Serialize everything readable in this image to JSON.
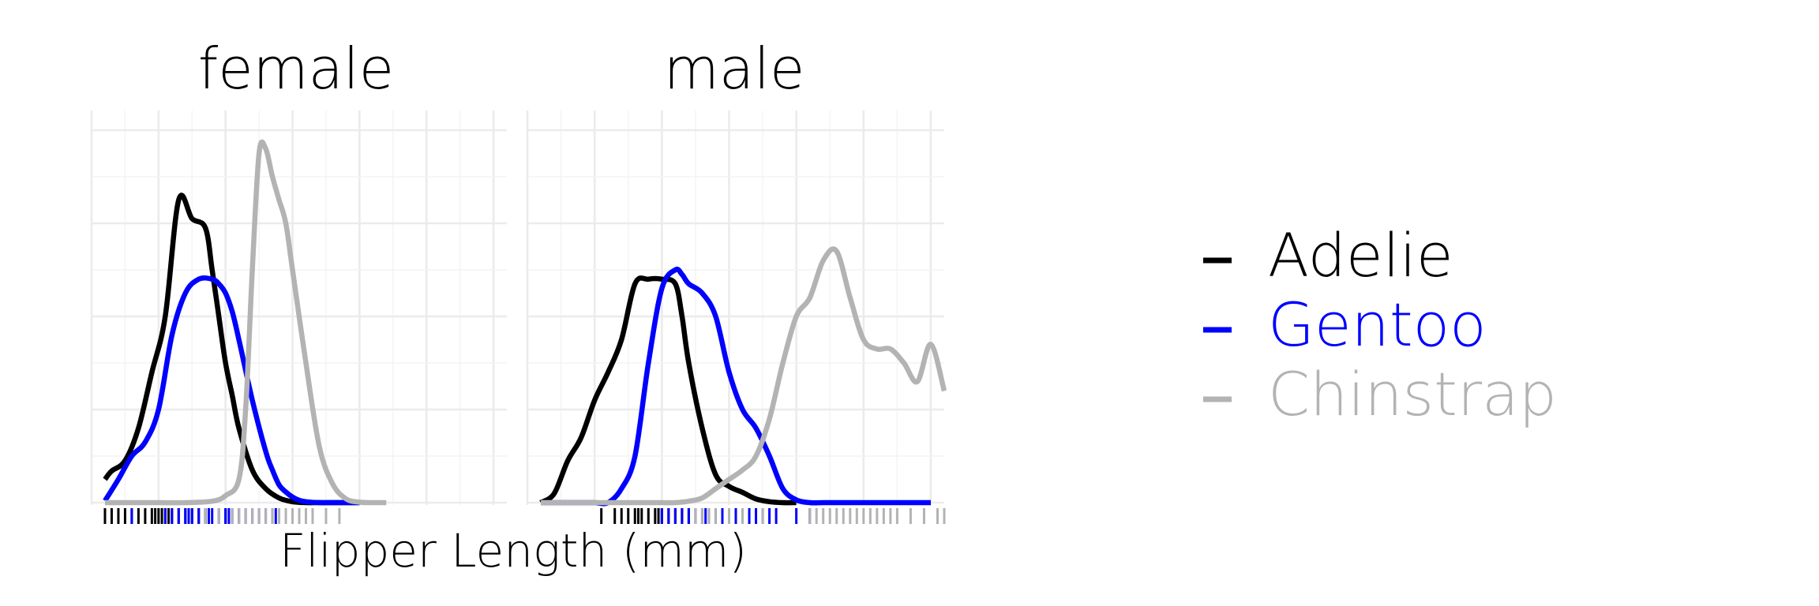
{
  "colors": {
    "Adelie": "#000000",
    "Gentoo": "#0000ff",
    "Chinstrap": "#b3b3b3"
  },
  "chart_data": {
    "type": "line",
    "subtype": "density-with-rug",
    "title": "",
    "xlabel": "Flipper Length (mm)",
    "ylabel": "",
    "xlim": [
      170,
      232
    ],
    "ylim": [
      0,
      0.08
    ],
    "grid": true,
    "legend": {
      "position": "right",
      "entries": [
        "Adelie",
        "Gentoo",
        "Chinstrap"
      ]
    },
    "facets": [
      {
        "label": "female",
        "series": [
          {
            "name": "Adelie",
            "x": [
              172,
              173,
              175,
              177,
              179,
              181,
              183,
              185,
              187,
              188,
              189,
              190,
              191,
              192,
              194,
              196,
              198,
              200,
              202,
              204,
              206,
              208,
              210
            ],
            "y": [
              0.005,
              0.0068,
              0.009,
              0.016,
              0.028,
              0.04,
              0.065,
              0.061,
              0.059,
              0.05,
              0.04,
              0.03,
              0.023,
              0.016,
              0.007,
              0.003,
              0.001,
              0.0002,
              0.0,
              0.0,
              0.0,
              0.0,
              0.0
            ]
          },
          {
            "name": "Gentoo",
            "x": [
              172,
              174,
              176,
              178,
              180,
              182,
              184,
              186,
              188,
              189,
              190,
              191,
              192,
              194,
              196,
              197,
              198,
              199,
              200,
              201,
              202,
              204,
              206,
              210
            ],
            "y": [
              0.0004,
              0.005,
              0.01,
              0.013,
              0.02,
              0.036,
              0.045,
              0.048,
              0.048,
              0.047,
              0.045,
              0.041,
              0.035,
              0.022,
              0.011,
              0.007,
              0.0038,
              0.0023,
              0.0012,
              0.0005,
              0.0002,
              0.0,
              0.0,
              0.0
            ]
          },
          {
            "name": "Chinstrap",
            "x": [
              172,
              176,
              180,
              184,
              188,
              190,
              192,
              193,
              194,
              195,
              196,
              197,
              198,
              199,
              200,
              202,
              204,
              206,
              208,
              210,
              212,
              214
            ],
            "y": [
              0.0,
              0.0,
              0.0,
              0.0,
              0.0003,
              0.0015,
              0.005,
              0.02,
              0.05,
              0.075,
              0.076,
              0.07,
              0.065,
              0.06,
              0.05,
              0.03,
              0.012,
              0.004,
              0.0008,
              0.0001,
              0.0,
              0.0
            ]
          }
        ],
        "rug": {
          "Adelie": [
            172,
            173,
            174,
            175,
            176,
            177,
            178,
            179,
            179.5,
            180,
            180.5,
            181,
            181.5,
            182,
            183,
            184,
            185,
            186,
            187,
            190
          ],
          "Gentoo": [
            176,
            181,
            182,
            183,
            184,
            184.5,
            185,
            186,
            187,
            187.5,
            188,
            189,
            190,
            190.5,
            191,
            192,
            193,
            194,
            195,
            196,
            197,
            197.5
          ],
          "Chinstrap": [
            187,
            189,
            191,
            192,
            193,
            194,
            195,
            196,
            197,
            198,
            199,
            200,
            201,
            202,
            203,
            205,
            207
          ]
        }
      },
      {
        "label": "male",
        "series": [
          {
            "name": "Adelie",
            "x": [
              172,
              174,
              176,
              178,
              180,
              182,
              184,
              186,
              188,
              190,
              192,
              193,
              194,
              196,
              198,
              200,
              202,
              204,
              206,
              208,
              210
            ],
            "y": [
              0.0,
              0.002,
              0.009,
              0.014,
              0.022,
              0.028,
              0.035,
              0.047,
              0.048,
              0.048,
              0.047,
              0.04,
              0.03,
              0.016,
              0.006,
              0.0035,
              0.0022,
              0.0008,
              0.0002,
              0.0,
              0.0
            ]
          },
          {
            "name": "Gentoo",
            "x": [
              172,
              174,
              176,
              178,
              180,
              182,
              184,
              186,
              188,
              190,
              192,
              193,
              194,
              196,
              198,
              200,
              202,
              204,
              206,
              208,
              210,
              212,
              214,
              216,
              218,
              220,
              222,
              226,
              230
            ],
            "y": [
              0.0,
              0.0,
              0.0,
              0.0,
              0.0,
              0.0,
              0.003,
              0.01,
              0.03,
              0.046,
              0.05,
              0.049,
              0.047,
              0.045,
              0.04,
              0.028,
              0.02,
              0.016,
              0.01,
              0.003,
              0.0006,
              0.0,
              0.0,
              0.0,
              0.0,
              0.0,
              0.0,
              0.0,
              0.0
            ]
          },
          {
            "name": "Chinstrap",
            "x": [
              172,
              176,
              180,
              184,
              188,
              190,
              192,
              194,
              196,
              198,
              200,
              202,
              204,
              206,
              208,
              210,
              212,
              214,
              216,
              218,
              220,
              222,
              224,
              226,
              228,
              230,
              232
            ],
            "y": [
              0.0,
              0.0,
              0.0,
              0.0,
              0.0,
              0.0,
              0.0,
              0.0003,
              0.001,
              0.003,
              0.005,
              0.007,
              0.01,
              0.018,
              0.03,
              0.04,
              0.044,
              0.052,
              0.054,
              0.044,
              0.035,
              0.033,
              0.033,
              0.03,
              0.026,
              0.034,
              0.024
            ]
          }
        ],
        "rug": {
          "Adelie": [
            181,
            183,
            184,
            185,
            186,
            186.5,
            187,
            188,
            189,
            189.5,
            190,
            191,
            192,
            193,
            194
          ],
          "Gentoo": [
            190,
            191,
            192,
            193,
            194,
            195,
            196,
            196.5,
            197,
            198,
            199,
            200,
            201,
            202,
            203,
            204,
            205,
            206,
            207,
            210,
            212
          ],
          "Chinstrap": [
            195,
            196,
            197,
            198,
            200,
            202,
            205,
            212,
            213,
            214,
            215,
            216,
            217,
            218,
            219,
            220,
            221,
            222,
            223,
            224,
            225,
            227,
            229,
            231,
            232
          ]
        }
      }
    ]
  }
}
